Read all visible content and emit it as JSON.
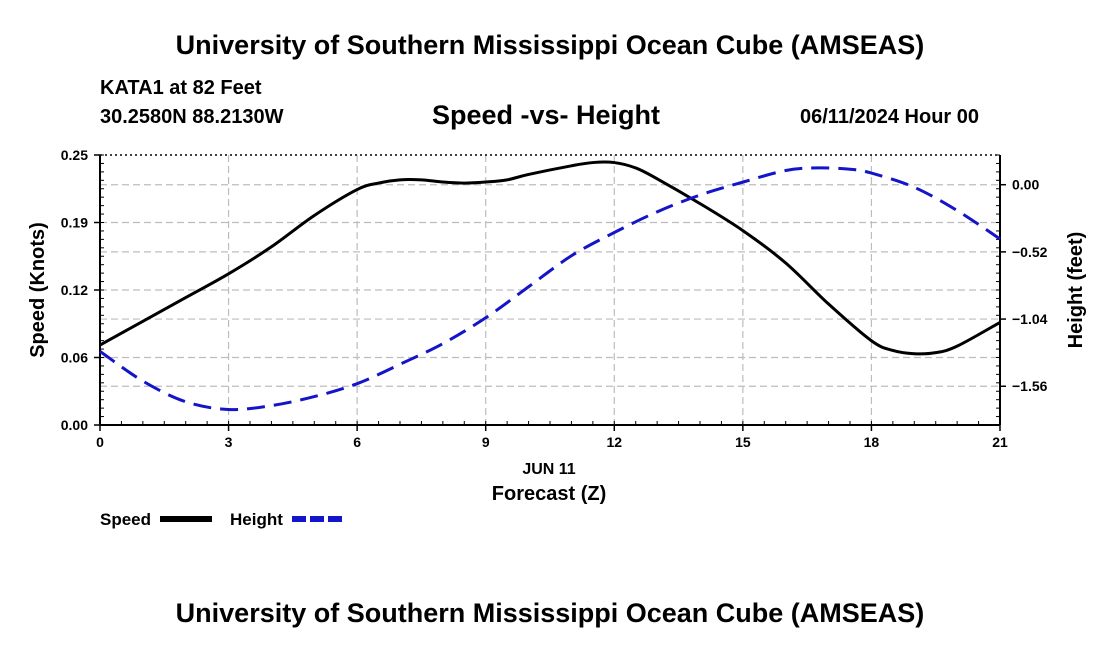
{
  "header": {
    "title": "University of Southern Mississippi Ocean Cube (AMSEAS)",
    "station": "KATA1 at 82 Feet",
    "coords": "30.2580N  88.2130W",
    "date_hour": "06/11/2024 Hour 00",
    "footer_title": "University of Southern Mississippi Ocean Cube (AMSEAS)"
  },
  "chart_data": {
    "type": "line",
    "title": "Speed -vs- Height",
    "xlabel": "Forecast (Z)",
    "xlabel_date": "JUN 11",
    "ylabel": "Speed (Knots)",
    "y2label": "Height (feet)",
    "x_ticks": [
      "0",
      "3",
      "6",
      "9",
      "12",
      "15",
      "18",
      "21"
    ],
    "y_ticks": [
      "0.00",
      "0.06",
      "0.12",
      "0.19",
      "0.25"
    ],
    "y_tick_values": [
      0.0,
      0.0625,
      0.125,
      0.1875,
      0.25
    ],
    "y2_ticks": [
      "0.00",
      "−0.52",
      "−1.04",
      "−1.56"
    ],
    "y2_tick_values": [
      0.0,
      -0.52,
      -1.04,
      -1.56
    ],
    "xlim": [
      0,
      21
    ],
    "ylim": [
      0,
      0.25
    ],
    "y2lim": [
      -1.86,
      0.23
    ],
    "grid": true,
    "legend": [
      {
        "label": "Speed",
        "color": "#000000",
        "dash": "solid"
      },
      {
        "label": "Height",
        "color": "#1414c8",
        "dash": "dashed"
      }
    ],
    "series": [
      {
        "name": "Speed",
        "axis": "left",
        "color": "#000000",
        "x": [
          0,
          1,
          2,
          3,
          4,
          5,
          6,
          6.5,
          7,
          7.5,
          8,
          8.5,
          9,
          9.5,
          10,
          11,
          11.5,
          12,
          12.5,
          13,
          14,
          15,
          16,
          17,
          18,
          18.5,
          19,
          19.5,
          20,
          21
        ],
        "values": [
          0.074,
          0.096,
          0.118,
          0.14,
          0.165,
          0.194,
          0.218,
          0.224,
          0.227,
          0.227,
          0.225,
          0.224,
          0.225,
          0.227,
          0.232,
          0.24,
          0.243,
          0.243,
          0.238,
          0.228,
          0.205,
          0.18,
          0.15,
          0.112,
          0.078,
          0.069,
          0.066,
          0.067,
          0.073,
          0.095
        ]
      },
      {
        "name": "Height",
        "axis": "right",
        "color": "#1414c8",
        "x": [
          0,
          1,
          2,
          3,
          4,
          5,
          6,
          7,
          8,
          9,
          10,
          11,
          12,
          13,
          14,
          15,
          16,
          16.75,
          17.5,
          18,
          19,
          20,
          21
        ],
        "values": [
          -1.29,
          -1.52,
          -1.68,
          -1.74,
          -1.71,
          -1.64,
          -1.54,
          -1.39,
          -1.23,
          -1.03,
          -0.79,
          -0.55,
          -0.37,
          -0.21,
          -0.08,
          0.02,
          0.11,
          0.13,
          0.12,
          0.09,
          -0.02,
          -0.2,
          -0.42
        ]
      }
    ]
  }
}
